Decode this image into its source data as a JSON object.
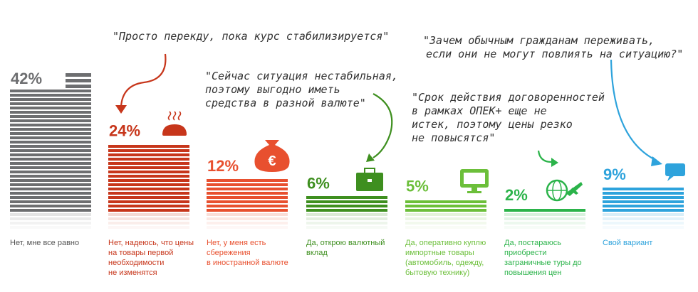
{
  "chart_data": {
    "type": "bar",
    "title": "",
    "xlabel": "",
    "ylabel": "",
    "ylim": [
      0,
      42
    ],
    "grid": false,
    "legend": "none",
    "value_format": "{v}%",
    "categories": [
      "Нет, мне все равно",
      "Нет, надеюсь, что цены на товары первой необходимости не изменятся",
      "Нет, у меня есть сбережения в иностранной валюте",
      "Да, открою валютный вклад",
      "Да, оперативно куплю импортные товары (автомобиль, одежду, бытовую технику)",
      "Да, постараюсь приобрести заграничные туры до повышения цен",
      "Свой вариант"
    ],
    "category_lines": [
      [
        "Нет, мне все равно"
      ],
      [
        "Нет, надеюсь, что цены",
        "на товары первой",
        "необходимости",
        "не изменятся"
      ],
      [
        "Нет, у меня есть",
        "сбережения",
        "в иностранной валюте"
      ],
      [
        "Да, открою валютный",
        "вклад"
      ],
      [
        "Да, оперативно куплю",
        "импортные товары",
        "(автомобиль, одежду,",
        "бытовую технику)"
      ],
      [
        "Да, постараюсь",
        "приобрести",
        "заграничные туры до",
        "повышения цен"
      ],
      [
        "Свой вариант"
      ]
    ],
    "values": [
      42,
      24,
      12,
      6,
      5,
      2,
      9
    ],
    "colors": [
      "#6d6e70",
      "#c7361b",
      "#e8502f",
      "#3e8f1f",
      "#6cbf3a",
      "#2bb34a",
      "#2ea3dc"
    ],
    "icons": [
      "bars-icon",
      "bread-icon",
      "money-bag-euro-icon",
      "briefcase-icon",
      "computer-icon",
      "globe-plane-icon",
      "speech-bubble-icon"
    ],
    "annotations": [
      {
        "lines": [
          "\"Просто перекду, пока курс стабилизируется\""
        ]
      },
      {
        "lines": [
          "\"Сейчас ситуация нестабильная,",
          "поэтому выгодно иметь",
          "средства в разной валюте\""
        ]
      },
      {
        "lines": [
          "\"Срок действия договоренностей",
          "в рамках ОПЕК+ еще не",
          "истек, поэтому цены резко",
          "не повысятся\""
        ]
      },
      {
        "lines": [
          "\"Зачем обычным гражданам переживать,",
          "если они не могут повлиять на ситуацию?\""
        ]
      }
    ]
  }
}
